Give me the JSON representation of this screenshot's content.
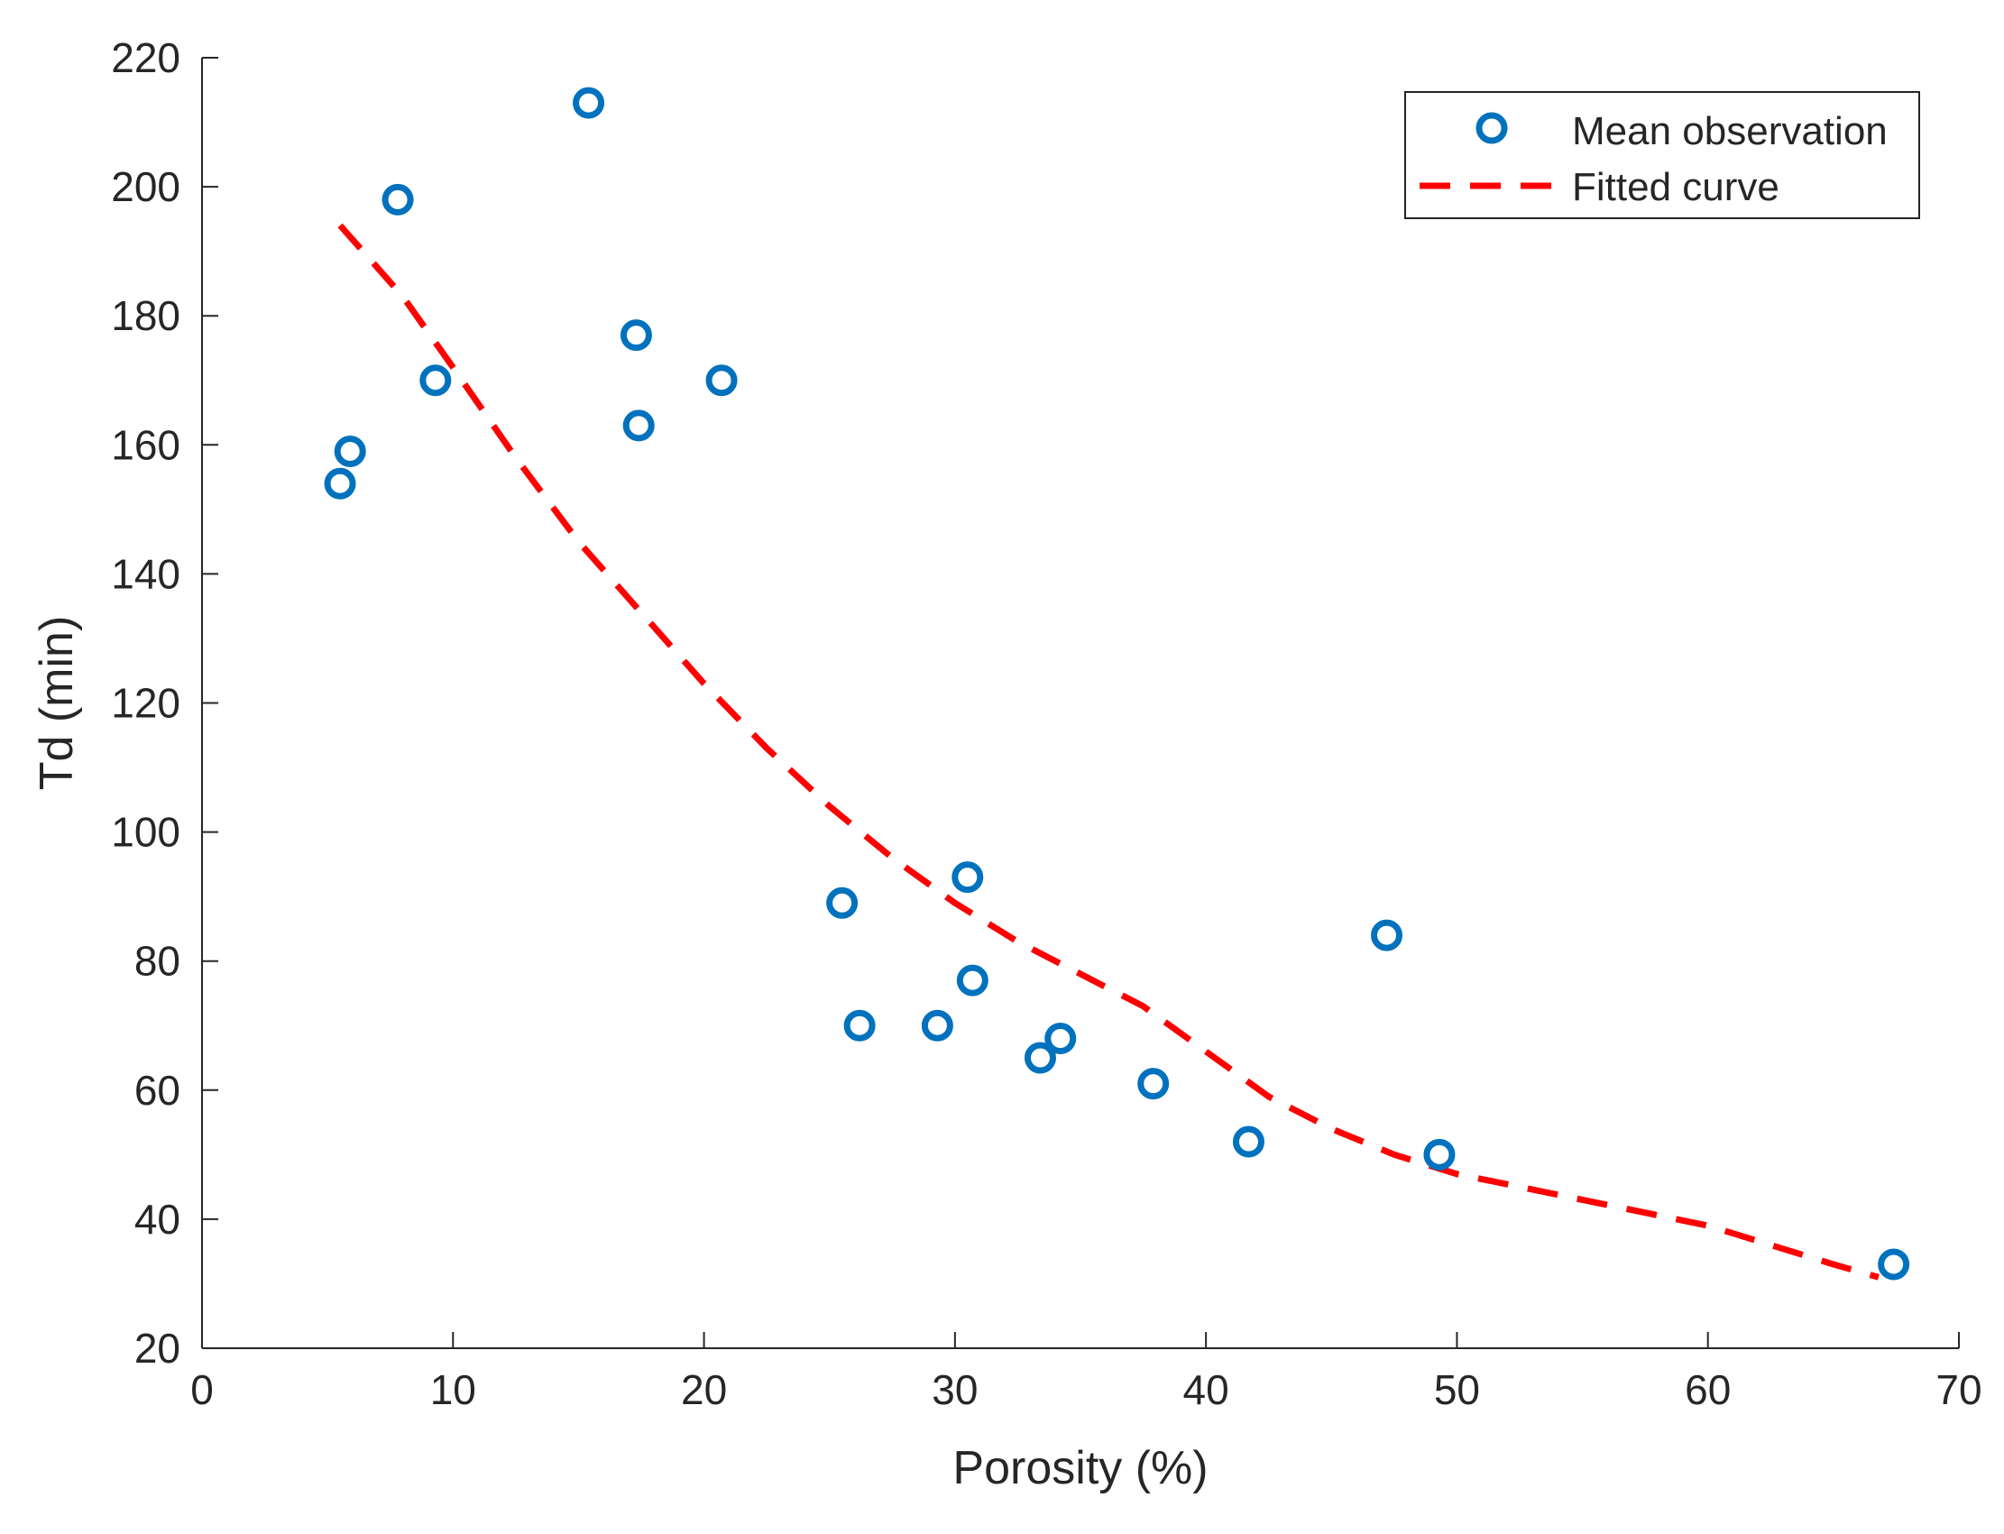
{
  "chart_data": {
    "type": "scatter",
    "title": "",
    "xlabel": "Porosity (%)",
    "ylabel": "Td (min)",
    "xlim": [
      0,
      70
    ],
    "ylim": [
      20,
      220
    ],
    "xticks": [
      0,
      10,
      20,
      30,
      40,
      50,
      60,
      70
    ],
    "yticks": [
      20,
      40,
      60,
      80,
      100,
      120,
      140,
      160,
      180,
      200,
      220
    ],
    "legend_position": "top-right",
    "series": [
      {
        "name": "Mean observation",
        "kind": "markers",
        "color": "#0072BD",
        "points": [
          [
            5.5,
            154
          ],
          [
            5.9,
            159
          ],
          [
            7.8,
            198
          ],
          [
            9.3,
            170
          ],
          [
            15.4,
            213
          ],
          [
            17.3,
            177
          ],
          [
            17.4,
            163
          ],
          [
            20.7,
            170
          ],
          [
            25.5,
            89
          ],
          [
            26.2,
            70
          ],
          [
            29.3,
            70
          ],
          [
            30.5,
            93
          ],
          [
            30.7,
            77
          ],
          [
            33.4,
            65
          ],
          [
            34.2,
            68
          ],
          [
            37.9,
            61
          ],
          [
            41.7,
            52
          ],
          [
            47.2,
            84
          ],
          [
            49.3,
            50
          ],
          [
            67.4,
            33
          ]
        ]
      },
      {
        "name": "Fitted curve",
        "kind": "dashed-line",
        "color": "#FF0000",
        "points": [
          [
            5.5,
            194
          ],
          [
            8,
            183
          ],
          [
            10,
            172
          ],
          [
            12.5,
            158
          ],
          [
            15,
            145
          ],
          [
            17.5,
            134
          ],
          [
            20,
            123
          ],
          [
            22.5,
            113
          ],
          [
            25,
            104
          ],
          [
            27.5,
            96
          ],
          [
            30,
            89
          ],
          [
            32.5,
            83
          ],
          [
            35,
            78
          ],
          [
            37.5,
            73
          ],
          [
            40,
            66
          ],
          [
            42.5,
            59
          ],
          [
            45,
            54
          ],
          [
            47.5,
            50
          ],
          [
            50,
            47
          ],
          [
            52.5,
            45
          ],
          [
            55,
            43
          ],
          [
            57.5,
            41
          ],
          [
            60,
            39
          ],
          [
            62.5,
            36
          ],
          [
            65,
            33
          ],
          [
            66.8,
            31
          ]
        ]
      }
    ]
  }
}
